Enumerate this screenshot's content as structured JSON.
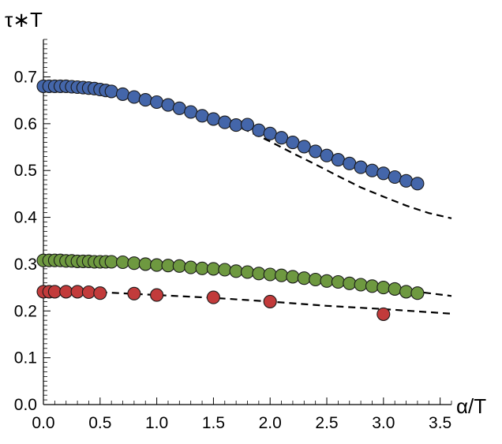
{
  "chart_data": {
    "type": "scatter",
    "xlabel": "α/T",
    "ylabel": "τ∗T",
    "xlim": [
      0,
      3.6
    ],
    "ylim": [
      0,
      0.78
    ],
    "x_ticks": [
      "0.0",
      "0.5",
      "1.0",
      "1.5",
      "2.0",
      "2.5",
      "3.0",
      "3.5"
    ],
    "y_ticks": [
      "0.0",
      "0.1",
      "0.2",
      "0.3",
      "0.4",
      "0.5",
      "0.6",
      "0.7"
    ],
    "grid": false,
    "series": [
      {
        "color": "#4466aa",
        "points": [
          [
            0,
            0.68
          ],
          [
            0.05,
            0.68
          ],
          [
            0.1,
            0.68
          ],
          [
            0.15,
            0.68
          ],
          [
            0.2,
            0.68
          ],
          [
            0.25,
            0.679
          ],
          [
            0.3,
            0.678
          ],
          [
            0.35,
            0.677
          ],
          [
            0.4,
            0.676
          ],
          [
            0.45,
            0.675
          ],
          [
            0.5,
            0.673
          ],
          [
            0.55,
            0.671
          ],
          [
            0.6,
            0.669
          ],
          [
            0.7,
            0.663
          ],
          [
            0.8,
            0.657
          ],
          [
            0.9,
            0.651
          ],
          [
            1.0,
            0.646
          ],
          [
            1.1,
            0.64
          ],
          [
            1.2,
            0.633
          ],
          [
            1.3,
            0.625
          ],
          [
            1.4,
            0.617
          ],
          [
            1.5,
            0.61
          ],
          [
            1.6,
            0.603
          ],
          [
            1.7,
            0.597
          ],
          [
            1.8,
            0.598
          ],
          [
            1.9,
            0.586
          ],
          [
            2.0,
            0.579
          ],
          [
            2.1,
            0.57
          ],
          [
            2.2,
            0.56
          ],
          [
            2.3,
            0.551
          ],
          [
            2.4,
            0.541
          ],
          [
            2.5,
            0.532
          ],
          [
            2.6,
            0.523
          ],
          [
            2.7,
            0.515
          ],
          [
            2.8,
            0.507
          ],
          [
            2.9,
            0.5
          ],
          [
            3.0,
            0.494
          ],
          [
            3.1,
            0.486
          ],
          [
            3.2,
            0.478
          ],
          [
            3.3,
            0.472
          ]
        ]
      },
      {
        "color": "#6e9940",
        "points": [
          [
            0,
            0.308
          ],
          [
            0.05,
            0.308
          ],
          [
            0.1,
            0.308
          ],
          [
            0.15,
            0.308
          ],
          [
            0.2,
            0.307
          ],
          [
            0.25,
            0.307
          ],
          [
            0.3,
            0.306
          ],
          [
            0.35,
            0.306
          ],
          [
            0.4,
            0.306
          ],
          [
            0.45,
            0.305
          ],
          [
            0.5,
            0.305
          ],
          [
            0.55,
            0.305
          ],
          [
            0.6,
            0.305
          ],
          [
            0.7,
            0.304
          ],
          [
            0.8,
            0.302
          ],
          [
            0.9,
            0.3
          ],
          [
            1.0,
            0.298
          ],
          [
            1.1,
            0.297
          ],
          [
            1.2,
            0.296
          ],
          [
            1.3,
            0.293
          ],
          [
            1.4,
            0.291
          ],
          [
            1.5,
            0.29
          ],
          [
            1.6,
            0.288
          ],
          [
            1.7,
            0.285
          ],
          [
            1.8,
            0.283
          ],
          [
            1.9,
            0.28
          ],
          [
            2.0,
            0.278
          ],
          [
            2.1,
            0.276
          ],
          [
            2.2,
            0.273
          ],
          [
            2.3,
            0.27
          ],
          [
            2.4,
            0.267
          ],
          [
            2.5,
            0.264
          ],
          [
            2.6,
            0.262
          ],
          [
            2.7,
            0.259
          ],
          [
            2.8,
            0.256
          ],
          [
            2.9,
            0.253
          ],
          [
            3.0,
            0.25
          ],
          [
            3.1,
            0.247
          ],
          [
            3.2,
            0.241
          ],
          [
            3.3,
            0.238
          ]
        ]
      },
      {
        "color": "#c23b3b",
        "points": [
          [
            0,
            0.241
          ],
          [
            0.05,
            0.241
          ],
          [
            0.1,
            0.241
          ],
          [
            0.2,
            0.241
          ],
          [
            0.3,
            0.241
          ],
          [
            0.4,
            0.24
          ],
          [
            0.5,
            0.238
          ],
          [
            0.8,
            0.237
          ],
          [
            1.0,
            0.234
          ],
          [
            1.5,
            0.229
          ],
          [
            2.0,
            0.22
          ],
          [
            3.0,
            0.193
          ]
        ]
      }
    ],
    "fit_lines": [
      {
        "style": "dashed",
        "points": [
          [
            0.55,
            0.672
          ],
          [
            0.8,
            0.659
          ],
          [
            1.0,
            0.65
          ],
          [
            1.2,
            0.637
          ],
          [
            1.4,
            0.622
          ],
          [
            1.6,
            0.605
          ],
          [
            1.8,
            0.585
          ],
          [
            2.0,
            0.562
          ],
          [
            2.2,
            0.537
          ],
          [
            2.4,
            0.513
          ],
          [
            2.6,
            0.488
          ],
          [
            2.8,
            0.464
          ],
          [
            3.0,
            0.444
          ],
          [
            3.2,
            0.425
          ],
          [
            3.4,
            0.409
          ],
          [
            3.6,
            0.398
          ]
        ]
      },
      {
        "style": "dashed",
        "points": [
          [
            0.55,
            0.305
          ],
          [
            1.0,
            0.298
          ],
          [
            1.5,
            0.29
          ],
          [
            2.0,
            0.278
          ],
          [
            2.5,
            0.264
          ],
          [
            3.0,
            0.25
          ],
          [
            3.3,
            0.241
          ],
          [
            3.6,
            0.232
          ]
        ]
      },
      {
        "style": "dashed",
        "points": [
          [
            0.5,
            0.24
          ],
          [
            1.0,
            0.234
          ],
          [
            1.5,
            0.228
          ],
          [
            2.0,
            0.22
          ],
          [
            2.5,
            0.211
          ],
          [
            3.0,
            0.204
          ],
          [
            3.6,
            0.194
          ]
        ]
      }
    ]
  }
}
